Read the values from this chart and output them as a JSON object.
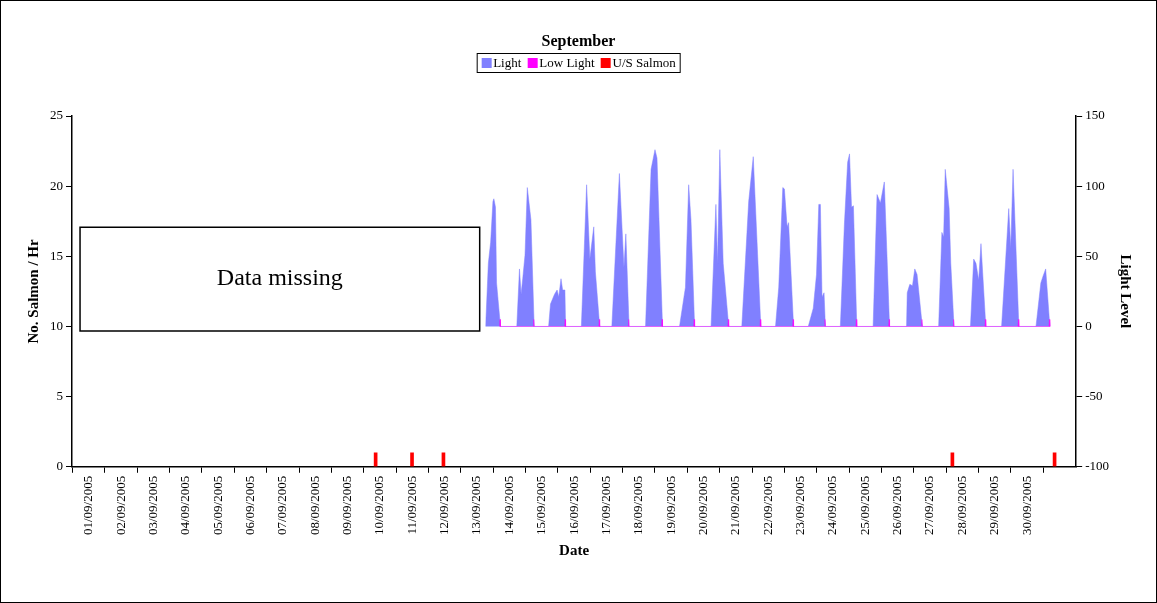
{
  "chart_data": {
    "type": "area",
    "title": "September",
    "xlabel": "Date",
    "ylabel": "No. Salmon / Hr",
    "y2label": "Light Level",
    "legend": "top",
    "grid": false,
    "annotations": [
      "Data missing"
    ],
    "xlim": [
      "2005-09-01",
      "2005-10-01"
    ],
    "xticks": [
      {
        "value": "2005-09-01",
        "label": "01/09/2005"
      },
      {
        "value": "2005-09-02",
        "label": "02/09/2005"
      },
      {
        "value": "2005-09-03",
        "label": "03/09/2005"
      },
      {
        "value": "2005-09-04",
        "label": "04/09/2005"
      },
      {
        "value": "2005-09-05",
        "label": "05/09/2005"
      },
      {
        "value": "2005-09-06",
        "label": "06/09/2005"
      },
      {
        "value": "2005-09-07",
        "label": "07/09/2005"
      },
      {
        "value": "2005-09-08",
        "label": "08/09/2005"
      },
      {
        "value": "2005-09-09",
        "label": "09/09/2005"
      },
      {
        "value": "2005-09-10",
        "label": "10/09/2005"
      },
      {
        "value": "2005-09-11",
        "label": "11/09/2005"
      },
      {
        "value": "2005-09-12",
        "label": "12/09/2005"
      },
      {
        "value": "2005-09-13",
        "label": "13/09/2005"
      },
      {
        "value": "2005-09-14",
        "label": "14/09/2005"
      },
      {
        "value": "2005-09-15",
        "label": "15/09/2005"
      },
      {
        "value": "2005-09-16",
        "label": "16/09/2005"
      },
      {
        "value": "2005-09-17",
        "label": "17/09/2005"
      },
      {
        "value": "2005-09-18",
        "label": "18/09/2005"
      },
      {
        "value": "2005-09-19",
        "label": "19/09/2005"
      },
      {
        "value": "2005-09-20",
        "label": "20/09/2005"
      },
      {
        "value": "2005-09-21",
        "label": "21/09/2005"
      },
      {
        "value": "2005-09-22",
        "label": "22/09/2005"
      },
      {
        "value": "2005-09-23",
        "label": "23/09/2005"
      },
      {
        "value": "2005-09-24",
        "label": "24/09/2005"
      },
      {
        "value": "2005-09-25",
        "label": "25/09/2005"
      },
      {
        "value": "2005-09-26",
        "label": "26/09/2005"
      },
      {
        "value": "2005-09-27",
        "label": "27/09/2005"
      },
      {
        "value": "2005-09-28",
        "label": "28/09/2005"
      },
      {
        "value": "2005-09-29",
        "label": "29/09/2005"
      },
      {
        "value": "2005-09-30",
        "label": "30/09/2005"
      }
    ],
    "ylim": [
      0,
      25
    ],
    "yticks": [
      0,
      5,
      10,
      15,
      20,
      25
    ],
    "y2lim": [
      -100,
      150
    ],
    "y2ticks": [
      -100,
      -50,
      0,
      50,
      100,
      150
    ],
    "series": [
      {
        "name": "Light",
        "axis": "y2",
        "color": "#8080ff",
        "x": [
          "2005-09-13T06:24",
          "2005-09-13T08:24",
          "2005-09-13T10:06",
          "2005-09-13T11:48",
          "2005-09-13T12:30",
          "2005-09-13T13:42",
          "2005-09-13T14:30",
          "2005-09-13T17:24",
          "2005-09-14T05:30",
          "2005-09-14T07:30",
          "2005-09-14T08:42",
          "2005-09-14T09:54",
          "2005-09-14T11:36",
          "2005-09-14T13:18",
          "2005-09-14T16:00",
          "2005-09-14T18:24",
          "2005-09-15T05:06",
          "2005-09-15T06:30",
          "2005-09-15T09:30",
          "2005-09-15T11:24",
          "2005-09-15T12:36",
          "2005-09-15T14:18",
          "2005-09-15T15:30",
          "2005-09-15T17:12",
          "2005-09-15T17:42",
          "2005-09-16T05:24",
          "2005-09-16T09:18",
          "2005-09-16T11:42",
          "2005-09-16T14:36",
          "2005-09-16T15:48",
          "2005-09-16T19:00",
          "2005-09-17T04:00",
          "2005-09-17T09:36",
          "2005-09-17T13:00",
          "2005-09-17T14:24",
          "2005-09-17T16:48",
          "2005-09-18T05:00",
          "2005-09-18T09:06",
          "2005-09-18T12:00",
          "2005-09-18T13:30",
          "2005-09-18T17:36",
          "2005-09-19T06:12",
          "2005-09-19T10:36",
          "2005-09-19T13:00",
          "2005-09-19T14:42",
          "2005-09-19T17:24",
          "2005-09-20T05:36",
          "2005-09-20T09:12",
          "2005-09-20T10:24",
          "2005-09-20T12:06",
          "2005-09-20T14:36",
          "2005-09-20T18:42",
          "2005-09-21T04:24",
          "2005-09-21T09:30",
          "2005-09-21T12:54",
          "2005-09-21T18:30",
          "2005-09-22T05:24",
          "2005-09-22T07:48",
          "2005-09-22T10:48",
          "2005-09-22T12:00",
          "2005-09-22T14:00",
          "2005-09-22T15:06",
          "2005-09-22T18:48",
          "2005-09-23T05:42",
          "2005-09-23T09:24",
          "2005-09-23T11:48",
          "2005-09-23T13:30",
          "2005-09-23T14:42",
          "2005-09-23T15:54",
          "2005-09-23T17:24",
          "2005-09-23T18:24",
          "2005-09-24T05:30",
          "2005-09-24T08:30",
          "2005-09-24T10:54",
          "2005-09-24T12:18",
          "2005-09-24T13:48",
          "2005-09-24T15:12",
          "2005-09-24T17:42",
          "2005-09-25T05:48",
          "2005-09-25T08:42",
          "2005-09-25T11:12",
          "2005-09-25T14:06",
          "2005-09-25T18:00",
          "2005-09-26T06:36",
          "2005-09-26T07:06",
          "2005-09-26T09:00",
          "2005-09-26T11:00",
          "2005-09-26T12:42",
          "2005-09-26T14:24",
          "2005-09-26T18:18",
          "2005-09-27T06:24",
          "2005-09-27T08:48",
          "2005-09-27T10:06",
          "2005-09-27T11:18",
          "2005-09-27T14:12",
          "2005-09-27T15:24",
          "2005-09-27T17:48",
          "2005-09-28T06:00",
          "2005-09-28T08:24",
          "2005-09-28T10:06",
          "2005-09-28T12:06",
          "2005-09-28T13:48",
          "2005-09-28T17:24",
          "2005-09-29T05:06",
          "2005-09-29T10:24",
          "2005-09-29T11:54",
          "2005-09-29T13:36",
          "2005-09-29T17:54",
          "2005-09-30T06:36",
          "2005-09-30T10:12",
          "2005-09-30T11:54",
          "2005-09-30T13:48",
          "2005-09-30T16:54"
        ],
        "values": [
          0,
          45,
          60,
          89,
          91,
          85,
          31,
          0,
          0,
          41,
          23,
          34,
          51,
          99,
          76,
          0,
          0,
          16,
          23,
          26,
          21,
          34,
          26,
          26,
          0,
          0,
          101,
          48,
          71,
          39,
          0,
          0,
          109,
          42,
          66,
          0,
          0,
          112,
          126,
          120,
          0,
          0,
          28,
          101,
          76,
          0,
          0,
          87,
          45,
          126,
          45,
          0,
          0,
          89,
          121,
          0,
          0,
          28,
          99,
          98,
          71,
          74,
          0,
          0,
          13,
          37,
          87,
          87,
          21,
          24,
          0,
          0,
          73,
          117,
          123,
          85,
          86,
          0,
          0,
          94,
          88,
          103,
          0,
          0,
          24,
          30,
          29,
          41,
          37,
          0,
          0,
          67,
          64,
          112,
          84,
          45,
          0,
          0,
          48,
          45,
          33,
          59,
          0,
          0,
          84,
          56,
          112,
          0,
          0,
          31,
          36,
          41,
          0
        ]
      },
      {
        "name": "Low Light",
        "type": "area",
        "axis": "y2",
        "color": "#ff00ff",
        "x": [
          "2005-09-13T16:44",
          "2005-09-13T17:04",
          "2005-09-13T17:24",
          "2005-09-14T17:44",
          "2005-09-14T18:04",
          "2005-09-14T18:24",
          "2005-09-15T17:02",
          "2005-09-15T17:22",
          "2005-09-15T17:42",
          "2005-09-16T18:20",
          "2005-09-16T18:40",
          "2005-09-16T19:00",
          "2005-09-17T16:08",
          "2005-09-17T16:28",
          "2005-09-17T16:48",
          "2005-09-18T16:56",
          "2005-09-18T17:16",
          "2005-09-18T17:36",
          "2005-09-19T16:44",
          "2005-09-19T17:04",
          "2005-09-19T17:24",
          "2005-09-20T18:02",
          "2005-09-20T18:22",
          "2005-09-20T18:42",
          "2005-09-21T17:50",
          "2005-09-21T18:10",
          "2005-09-21T18:30",
          "2005-09-22T18:08",
          "2005-09-22T18:28",
          "2005-09-22T18:48",
          "2005-09-23T17:44",
          "2005-09-23T18:04",
          "2005-09-23T18:24",
          "2005-09-24T17:02",
          "2005-09-24T17:22",
          "2005-09-24T17:42",
          "2005-09-25T17:20",
          "2005-09-25T17:40",
          "2005-09-25T18:00",
          "2005-09-26T17:38",
          "2005-09-26T17:58",
          "2005-09-26T18:18",
          "2005-09-27T17:08",
          "2005-09-27T17:28",
          "2005-09-27T17:48",
          "2005-09-28T16:44",
          "2005-09-28T17:04",
          "2005-09-28T17:24",
          "2005-09-29T17:14",
          "2005-09-29T17:34",
          "2005-09-29T17:54",
          "2005-09-30T16:14",
          "2005-09-30T16:34",
          "2005-09-30T16:54"
        ],
        "values": [
          0,
          5,
          0,
          0,
          5,
          0,
          0,
          5,
          0,
          0,
          5,
          0,
          0,
          5,
          0,
          0,
          5,
          0,
          0,
          5,
          0,
          0,
          5,
          0,
          0,
          5,
          0,
          0,
          5,
          0,
          0,
          5,
          0,
          0,
          5,
          0,
          0,
          5,
          0,
          0,
          5,
          0,
          0,
          5,
          0,
          0,
          5,
          0,
          0,
          5,
          0,
          0,
          5,
          0
        ]
      },
      {
        "name": "U/S Salmon",
        "type": "bar",
        "color": "#ff0000",
        "x": [
          "2005-09-09T20:48",
          "2005-09-10T23:48",
          "2005-09-11T23:06",
          "2005-09-27T16:36",
          "2005-09-30T20:24"
        ],
        "values": [
          1,
          1,
          1,
          1,
          1
        ]
      }
    ]
  }
}
